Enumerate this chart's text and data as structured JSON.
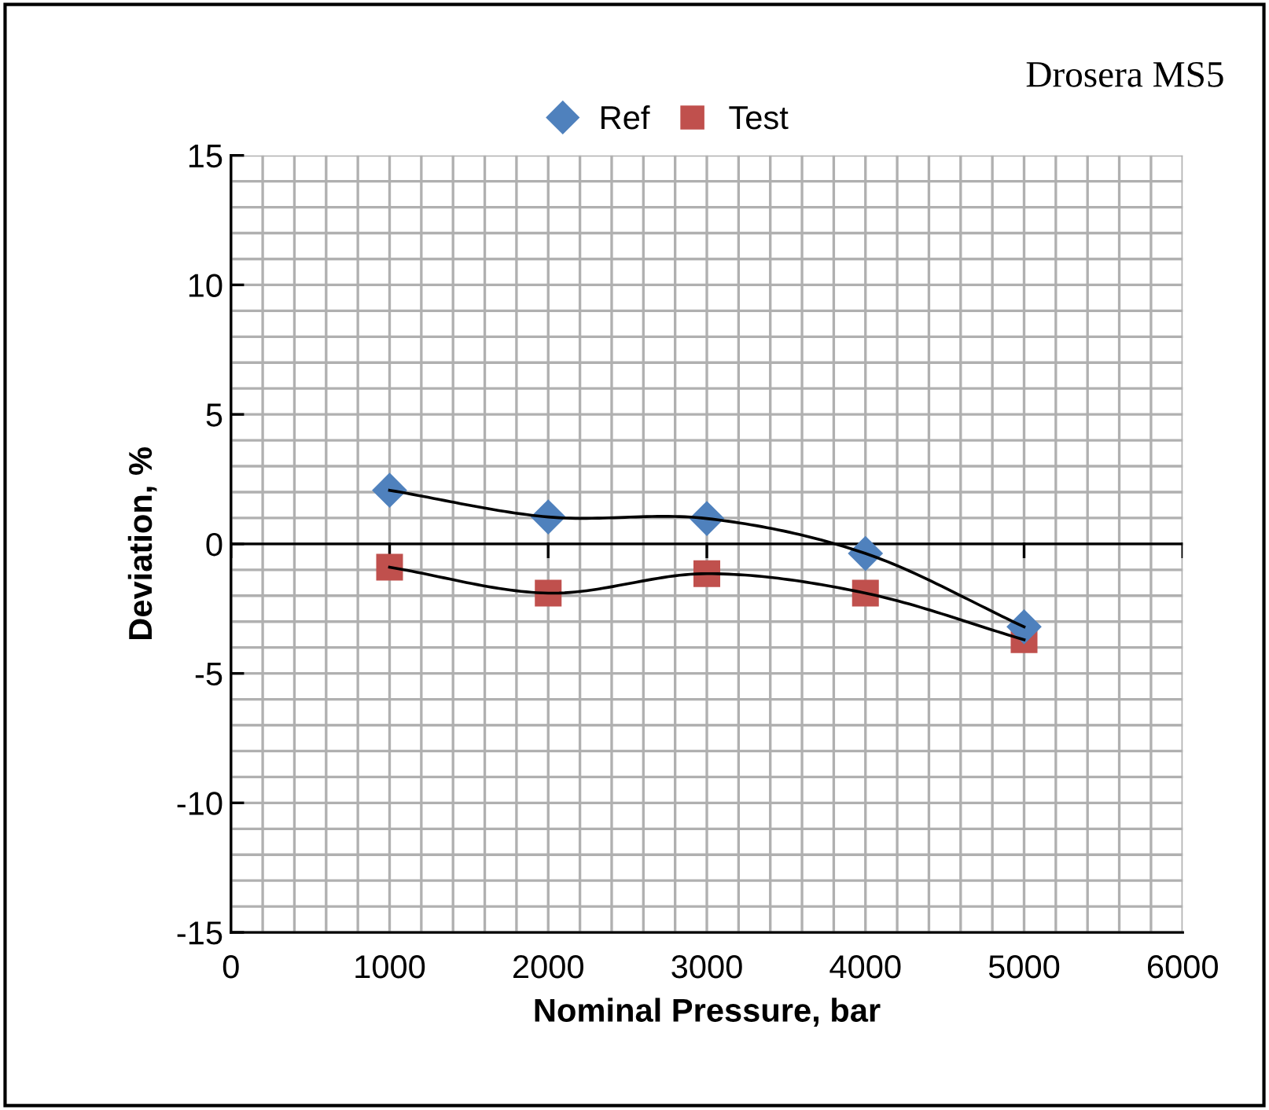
{
  "chart_data": {
    "type": "scatter",
    "xlabel": "Nominal Pressure, bar",
    "ylabel": "Deviation, %",
    "annotations": [
      "Drosera MS5"
    ],
    "x": [
      1000,
      2000,
      3000,
      4000,
      5000
    ],
    "series": [
      {
        "name": "Ref",
        "color": "#4f81bd",
        "marker": "diamond",
        "values": [
          2.07,
          1.04,
          0.98,
          -0.37,
          -3.2
        ]
      },
      {
        "name": "Test",
        "color": "#c0504d",
        "marker": "square",
        "values": [
          -0.9,
          -1.9,
          -1.15,
          -1.9,
          -3.7
        ]
      },
      {
        "type": "line",
        "color": "#000000",
        "x": [
          1000,
          2000,
          3000,
          4000,
          5000
        ],
        "values": [
          2.07,
          1.04,
          0.98,
          -0.37,
          -3.2
        ]
      },
      {
        "type": "line",
        "color": "#000000",
        "x": [
          1000,
          2000,
          3000,
          4000,
          5000
        ],
        "values": [
          -0.9,
          -1.9,
          -1.15,
          -1.9,
          -3.7
        ]
      }
    ],
    "ref_lines": [
      {
        "axis": "y",
        "value": 0,
        "color": "#000000"
      }
    ],
    "xlim": [
      0,
      6000
    ],
    "xticks": [
      0,
      1000,
      2000,
      3000,
      4000,
      5000,
      6000
    ],
    "ylim": [
      -15,
      15
    ],
    "yticks": [
      -15,
      -10,
      -5,
      0,
      5,
      10,
      15
    ],
    "grid": true,
    "legend": "top"
  }
}
